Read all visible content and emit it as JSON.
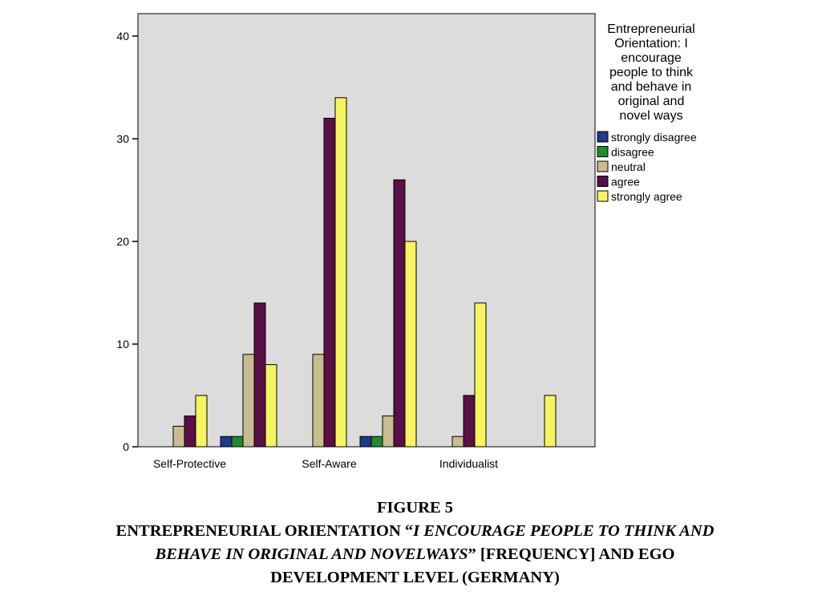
{
  "chart_data": {
    "type": "bar",
    "categories": [
      "Self-Protective",
      "",
      "Self-Aware",
      "",
      "Individualist",
      ""
    ],
    "ylim": [
      0,
      40
    ],
    "yticks": [
      0,
      10,
      20,
      30,
      40
    ],
    "grid": false,
    "legend": {
      "title_lines": [
        "Entrepreneurial",
        "Orientation: I",
        "encourage",
        "people to think",
        "and behave in",
        "original and",
        "novel ways"
      ],
      "placement": "right"
    },
    "series": [
      {
        "name": "strongly disagree",
        "color": "#1f3a8a",
        "values": [
          0,
          1,
          0,
          1,
          0,
          0
        ]
      },
      {
        "name": "disagree",
        "color": "#1e8c2e",
        "values": [
          0,
          1,
          0,
          1,
          0,
          0
        ]
      },
      {
        "name": "neutral",
        "color": "#c9bd8f",
        "values": [
          2,
          9,
          9,
          3,
          1,
          0
        ]
      },
      {
        "name": "agree",
        "color": "#5a0f47",
        "values": [
          3,
          14,
          32,
          26,
          5,
          0
        ]
      },
      {
        "name": "strongly agree",
        "color": "#f6f45f",
        "values": [
          5,
          8,
          34,
          20,
          14,
          5
        ]
      }
    ]
  },
  "caption": {
    "line1": "FIGURE 5",
    "line2_a": "ENTREPRENEURIAL ORIENTATION “",
    "line2_b": "I ENCOURAGE PEOPLE TO THINK AND",
    "line3_a": "BEHAVE IN ORIGINAL AND NOVELWAYS",
    "line3_b": "” [FREQUENCY] AND EGO",
    "line4": "DEVELOPMENT LEVEL (GERMANY)"
  }
}
